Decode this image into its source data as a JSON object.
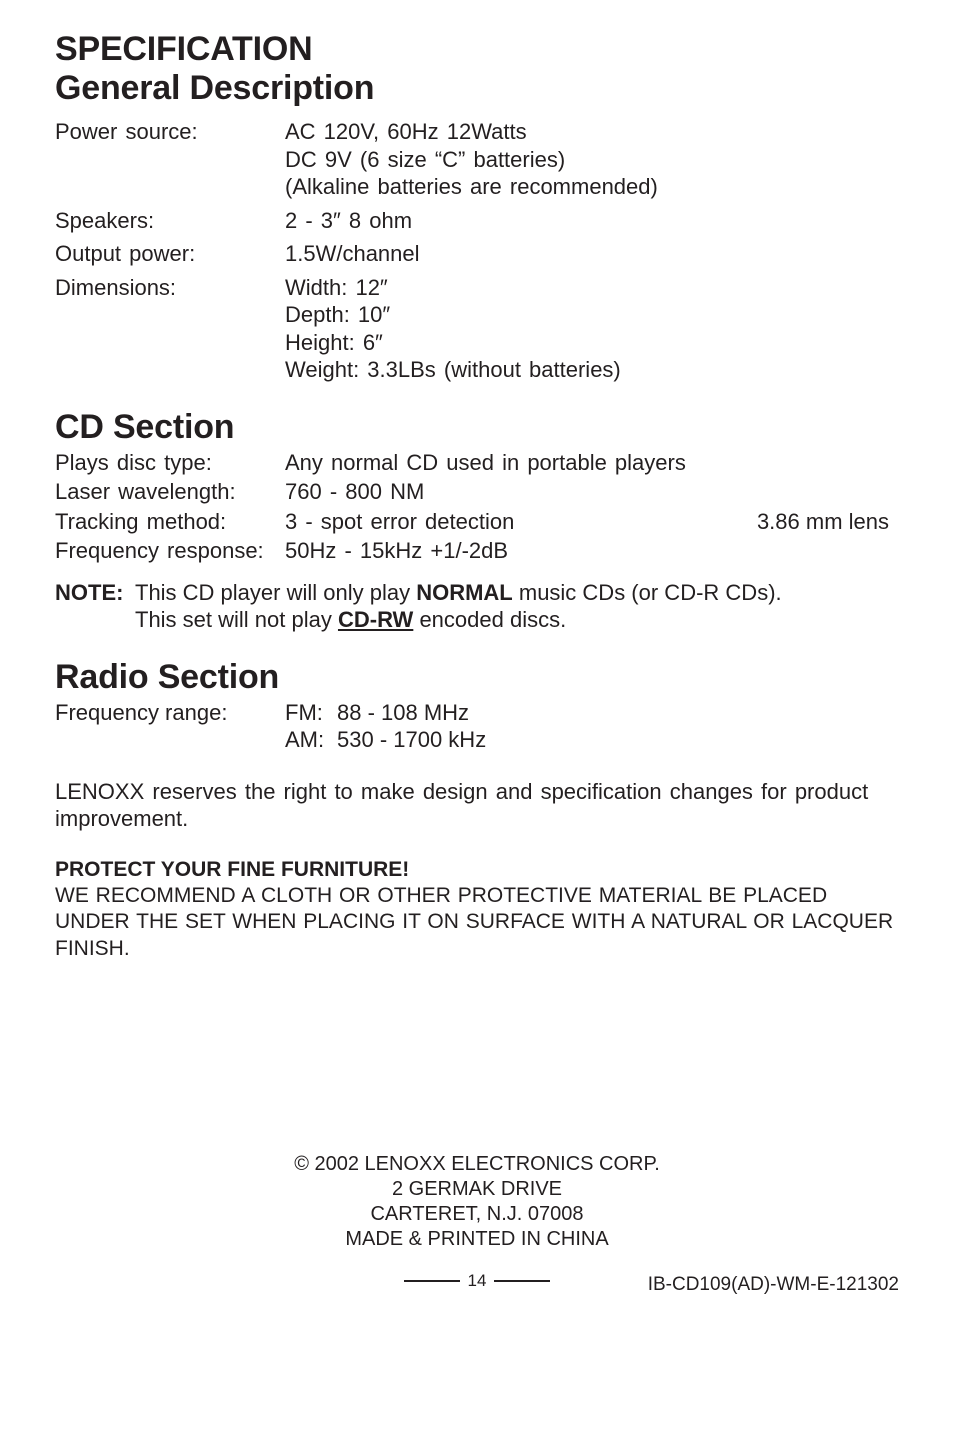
{
  "colors": {
    "text": "#231f20",
    "background": "#ffffff",
    "rule": "#231f20"
  },
  "typography": {
    "body_pt": 22,
    "heading_pt": 34,
    "footer_pt": 20,
    "protect_pt": 21,
    "pagenum_pt": 17,
    "doccode_pt": 19,
    "font_family": "Helvetica"
  },
  "heading": {
    "line1": "SPECIFICATION",
    "line2": "General Description"
  },
  "general": [
    {
      "label": "Power source:",
      "lines": [
        "AC 120V, 60Hz 12Watts",
        "DC 9V (6 size “C” batteries)",
        "(Alkaline batteries are recommended)"
      ]
    },
    {
      "label": "Speakers:",
      "lines": [
        "2 - 3″  8 ohm"
      ]
    },
    {
      "label": "Output power:",
      "lines": [
        "1.5W/channel"
      ]
    },
    {
      "label": "Dimensions:",
      "lines": [
        "Width: 12″",
        "Depth: 10″",
        "Height: 6″",
        "Weight: 3.3LBs (without batteries)"
      ]
    }
  ],
  "cd": {
    "title": "CD Section",
    "rows": [
      {
        "label": "Plays disc type:",
        "value": "Any normal CD used in portable players",
        "right": ""
      },
      {
        "label": "Laser wavelength:",
        "value": "760 - 800 NM",
        "right": ""
      },
      {
        "label": "Tracking method:",
        "value": "3 - spot error detection",
        "right": "3.86 mm lens"
      },
      {
        "label": "Frequency response:",
        "value": "50Hz - 15kHz +1/-2dB",
        "right": ""
      }
    ],
    "note_label": "NOTE:",
    "note_line1_a": "This CD player will only play ",
    "note_line1_b_bold": "NORMAL",
    "note_line1_c": " music CDs (or CD-R CDs).",
    "note_line2_a": "This set will not play ",
    "note_line2_b_underline": "CD-RW",
    "note_line2_c": " encoded discs."
  },
  "radio": {
    "title": "Radio Section",
    "label": "Frequency range:",
    "rows": [
      {
        "band": "FM:",
        "value": "88 - 108 MHz"
      },
      {
        "band": "AM:",
        "value": "530 - 1700 kHz"
      }
    ]
  },
  "disclaimer": "LENOXX reserves the right to make design and specification changes for product improvement.",
  "protect": {
    "heading": "PROTECT YOUR FINE FURNITURE!",
    "body": "WE RECOMMEND A CLOTH OR OTHER PROTECTIVE MATERIAL BE PLACED UNDER THE SET WHEN PLACING IT ON SURFACE WITH A NATURAL OR LACQUER FINISH."
  },
  "footer": {
    "lines": [
      "© 2002 LENOXX ELECTRONICS CORP.",
      "2 GERMAK DRIVE",
      "CARTERET, N.J. 07008",
      "MADE & PRINTED IN CHINA"
    ]
  },
  "page_number": "14",
  "doc_code": "IB-CD109(AD)-WM-E-121302"
}
